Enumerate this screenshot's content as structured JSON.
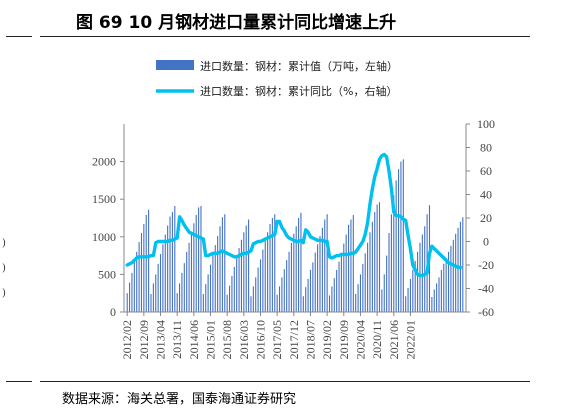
{
  "figure_title": "图 69 10 月钢材进口量累计同比增速上升",
  "source_note": "数据来源：海关总署，国泰海通证券研究",
  "edge_marks": [
    ")",
    ")",
    ")"
  ],
  "chart_data": {
    "type": "bar+line",
    "title": "",
    "legend_placement": "top",
    "colors": {
      "bar": "#4472c4",
      "line": "#00c0f0"
    },
    "left_axis": {
      "ylim": [
        0,
        2500
      ],
      "ticks": [
        0,
        500,
        1000,
        1500,
        2000
      ]
    },
    "right_axis": {
      "ylim": [
        -60,
        100
      ],
      "ticks": [
        -60,
        -40,
        -20,
        0,
        20,
        40,
        60,
        80,
        100
      ]
    },
    "x_tick_labels": [
      "2012/02",
      "2012/09",
      "2013/04",
      "2013/11",
      "2014/06",
      "2015/01",
      "2015/08",
      "2016/03",
      "2016/10",
      "2017/05",
      "2017/12",
      "2018/07",
      "2019/02",
      "2019/09",
      "2020/04",
      "2020/11",
      "2021/06",
      "2022/01"
    ],
    "x_tick_index_step": 7,
    "series": [
      {
        "name": "进口数量：钢材：累计值（万吨，左轴）",
        "axis": "left",
        "type": "bar",
        "values": [
          250,
          390,
          520,
          670,
          800,
          930,
          1050,
          1170,
          1290,
          1360,
          240,
          380,
          500,
          640,
          770,
          900,
          1030,
          1150,
          1270,
          1330,
          1410,
          250,
          380,
          520,
          650,
          800,
          920,
          1060,
          1180,
          1290,
          1390,
          1410,
          240,
          370,
          500,
          630,
          760,
          890,
          1010,
          1140,
          1260,
          1300,
          230,
          350,
          480,
          600,
          720,
          850,
          960,
          1060,
          1150,
          1230,
          210,
          340,
          460,
          590,
          700,
          830,
          950,
          1060,
          1170,
          1250,
          1300,
          230,
          340,
          460,
          570,
          690,
          800,
          920,
          1040,
          1140,
          1250,
          1320,
          210,
          330,
          440,
          560,
          660,
          790,
          900,
          1010,
          1120,
          1230,
          1300,
          220,
          340,
          450,
          560,
          670,
          790,
          910,
          1030,
          1160,
          1230,
          1290,
          240,
          370,
          500,
          640,
          780,
          920,
          1060,
          1200,
          1330,
          1430,
          1460,
          300,
          500,
          750,
          1050,
          1300,
          1550,
          1750,
          1900,
          2000,
          2030,
          210,
          320,
          440,
          560,
          680,
          800,
          920,
          1030,
          1140,
          1300,
          1420,
          200,
          300,
          380,
          460,
          560,
          640,
          720,
          800,
          880,
          960,
          1040,
          1120,
          1200,
          1260
        ]
      },
      {
        "name": "进口数量：钢材：累计同比（%，右轴）",
        "axis": "right",
        "type": "line",
        "values": [
          -20,
          -19,
          -18,
          -16,
          -14,
          -13,
          -13,
          -13,
          -13,
          -13,
          -12,
          -12,
          -1,
          0,
          0,
          0,
          0,
          0,
          1,
          1,
          2,
          3,
          21,
          18,
          14,
          11,
          8,
          7,
          6,
          5,
          4,
          3,
          2,
          -12,
          -12,
          -11,
          -10,
          -10,
          -10,
          -9,
          -8,
          -9,
          -10,
          -11,
          -12,
          -13,
          -13,
          -12,
          -11,
          -10,
          -10,
          -9,
          -8,
          -2,
          -1,
          0,
          0,
          1,
          2,
          3,
          4,
          5,
          6,
          17,
          17,
          12,
          9,
          5,
          3,
          2,
          1,
          0,
          0,
          1,
          -1,
          10,
          8,
          4,
          3,
          2,
          1,
          1,
          1,
          0,
          0,
          -13,
          -14,
          -13,
          -12,
          -12,
          -11,
          -11,
          -11,
          -11,
          -10,
          -10,
          -9,
          -6,
          -3,
          0,
          6,
          16,
          32,
          45,
          55,
          62,
          70,
          73,
          74,
          72,
          60,
          45,
          25,
          22,
          22,
          21,
          19,
          18,
          5,
          -6,
          -20,
          -24,
          -28,
          -29,
          -29,
          -28,
          -27,
          -10,
          -4,
          -6,
          -8,
          -10,
          -12,
          -14,
          -16,
          -18,
          -19,
          -20,
          -21,
          -22,
          -22
        ]
      }
    ]
  }
}
